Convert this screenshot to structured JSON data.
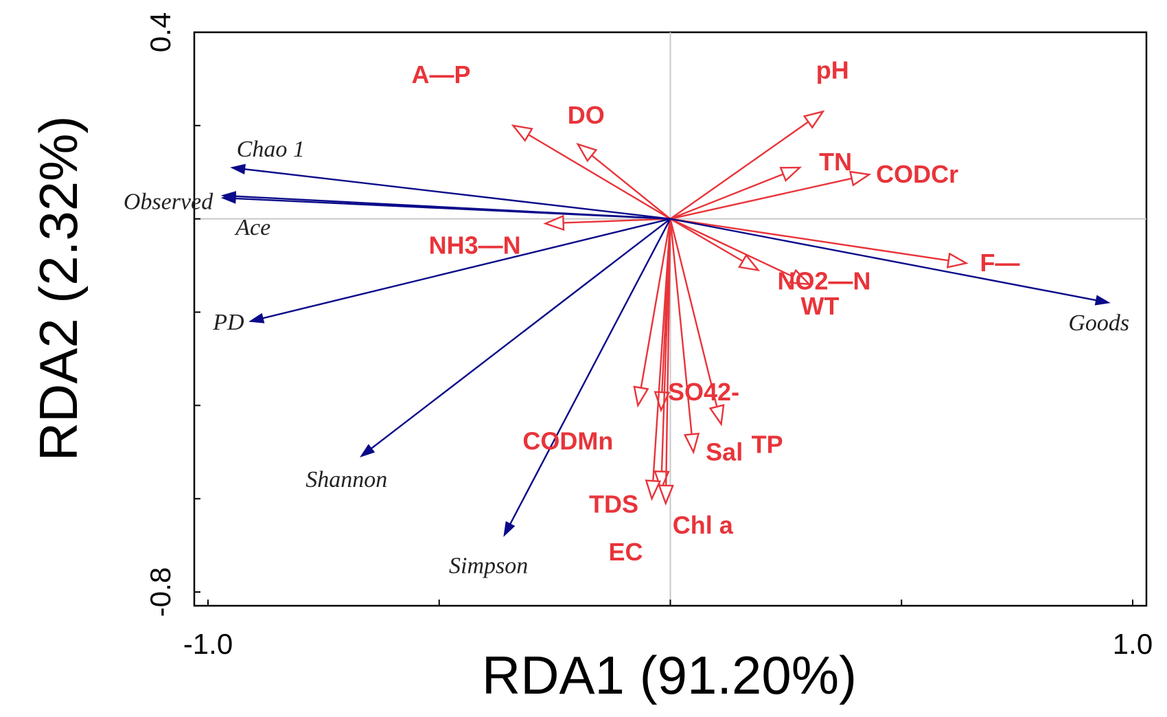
{
  "chart_data": {
    "type": "biplot",
    "title": "",
    "xlabel": "RDA1 (91.20%)",
    "ylabel": "RDA2 (2.32%)",
    "xlim": [
      -1.0,
      1.0
    ],
    "ylim": [
      -0.8,
      0.4
    ],
    "x_tick_labels": [
      {
        "value": -1.0,
        "label": "-1.0"
      },
      {
        "value": 1.0,
        "label": "1.0"
      }
    ],
    "y_tick_labels": [
      {
        "value": 0.4,
        "label": "0.4"
      },
      {
        "value": -0.8,
        "label": "-0.8"
      }
    ],
    "x_minor_ticks": [
      -1.0,
      -0.5,
      0.0,
      0.5,
      1.0
    ],
    "y_minor_ticks": [
      0.4,
      0.2,
      0.0,
      -0.2,
      -0.4,
      -0.6,
      -0.8
    ],
    "zero_lines": true,
    "colors": {
      "environment": "#e8343a",
      "species": "#0a0a8a",
      "zero_line": "#c8c8c8"
    },
    "environment_vectors": [
      {
        "name": "A—P",
        "x": -0.34,
        "y": 0.2
      },
      {
        "name": "DO",
        "x": -0.2,
        "y": 0.16
      },
      {
        "name": "pH",
        "x": 0.33,
        "y": 0.23
      },
      {
        "name": "TN",
        "x": 0.28,
        "y": 0.11
      },
      {
        "name": "CODCr",
        "x": 0.43,
        "y": 0.095
      },
      {
        "name": "NH3—N",
        "x": -0.27,
        "y": -0.01
      },
      {
        "name": "NO2—N",
        "x": 0.19,
        "y": -0.11
      },
      {
        "name": "WT",
        "x": 0.3,
        "y": -0.14
      },
      {
        "name": "F—",
        "x": 0.64,
        "y": -0.095
      },
      {
        "name": "CODMn",
        "x": -0.07,
        "y": -0.4
      },
      {
        "name": "SO42-",
        "x": -0.02,
        "y": -0.41
      },
      {
        "name": "TP",
        "x": 0.11,
        "y": -0.44
      },
      {
        "name": "Sal",
        "x": 0.05,
        "y": -0.5
      },
      {
        "name": "TDS",
        "x": -0.02,
        "y": -0.58
      },
      {
        "name": "Chl a",
        "x": -0.01,
        "y": -0.61
      },
      {
        "name": "EC",
        "x": -0.04,
        "y": -0.6
      }
    ],
    "species_vectors": [
      {
        "name": "Chao 1",
        "x": -0.95,
        "y": 0.11
      },
      {
        "name": "Observed",
        "x": -0.97,
        "y": 0.05
      },
      {
        "name": "Ace",
        "x": -0.97,
        "y": 0.045
      },
      {
        "name": "PD",
        "x": -0.91,
        "y": -0.22
      },
      {
        "name": "Shannon",
        "x": -0.67,
        "y": -0.51
      },
      {
        "name": "Simpson",
        "x": -0.36,
        "y": -0.68
      },
      {
        "name": "Goods",
        "x": 0.95,
        "y": -0.18
      }
    ]
  }
}
